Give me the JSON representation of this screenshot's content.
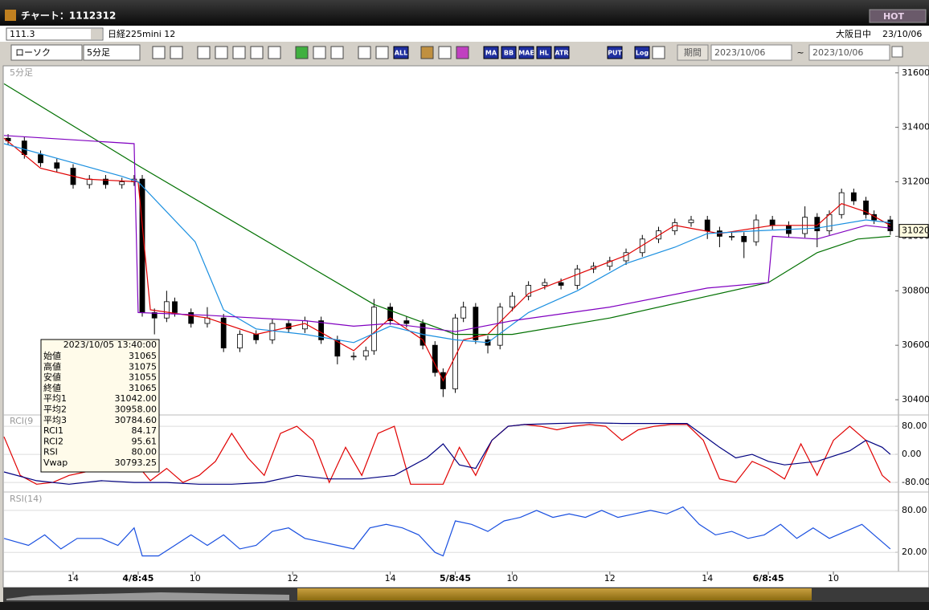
{
  "window": {
    "title": "チャート：1112312",
    "hot": "HOT"
  },
  "symbol_bar": {
    "code": "111.3",
    "name": "日経225mini 12",
    "session": "大阪日中",
    "date": "23/10/06"
  },
  "toolbar": {
    "chart_type": "ローソク",
    "interval": "5分足",
    "buttons": [
      "ALL",
      "MA",
      "BB",
      "MAE",
      "HL",
      "ATR",
      "PUT",
      "Log"
    ],
    "period": "期間",
    "from": "2023/10/06",
    "sep": "~",
    "to": "2023/10/06"
  },
  "info_panel": {
    "time": "2023/10/05 13:40:00",
    "rows": [
      {
        "label": "始値",
        "value": "31065",
        "color": "#000000"
      },
      {
        "label": "高値",
        "value": "31075",
        "color": "#000000"
      },
      {
        "label": "安値",
        "value": "31055",
        "color": "#000000"
      },
      {
        "label": "終値",
        "value": "31065",
        "color": "#000000"
      },
      {
        "label": "平均1",
        "value": "31042.00",
        "color": "#e00000"
      },
      {
        "label": "平均2",
        "value": "30958.00",
        "color": "#1a8fe0"
      },
      {
        "label": "平均3",
        "value": "30784.60",
        "color": "#007000"
      },
      {
        "label": "RCI1",
        "value": "84.17",
        "color": "#e00000"
      },
      {
        "label": "RCI2",
        "value": "95.61",
        "color": "#000080"
      },
      {
        "label": "RSI",
        "value": "80.00",
        "color": "#1a50e0"
      },
      {
        "label": "Vwap",
        "value": "30793.25",
        "color": "#8000c0"
      }
    ]
  },
  "chart_data": [
    {
      "type": "candlestick",
      "label": "5分足",
      "xlim": [
        0,
        220
      ],
      "xticks": [
        {
          "value": 17,
          "label": "14"
        },
        {
          "value": 33,
          "label": "4/8:45"
        },
        {
          "value": 47,
          "label": "10"
        },
        {
          "value": 71,
          "label": "12"
        },
        {
          "value": 95,
          "label": "14"
        },
        {
          "value": 111,
          "label": "5/8:45"
        },
        {
          "value": 125,
          "label": "10"
        },
        {
          "value": 149,
          "label": "12"
        },
        {
          "value": 173,
          "label": "14"
        },
        {
          "value": 188,
          "label": "6/8:45"
        },
        {
          "value": 204,
          "label": "10"
        }
      ],
      "ylim": [
        30350,
        31620
      ],
      "yticks": [
        30400,
        30600,
        30800,
        31000,
        31200,
        31400,
        31600
      ],
      "last_price": 31020,
      "x": [
        1,
        5,
        9,
        13,
        17,
        21,
        25,
        29,
        32,
        34,
        37,
        40,
        42,
        46,
        50,
        54,
        58,
        62,
        66,
        70,
        74,
        78,
        82,
        86,
        89,
        91,
        95,
        99,
        103,
        106,
        108,
        111,
        113,
        116,
        119,
        122,
        125,
        129,
        133,
        137,
        141,
        145,
        149,
        153,
        157,
        161,
        165,
        169,
        173,
        176,
        179,
        182,
        185,
        189,
        193,
        197,
        200,
        203,
        206,
        209,
        212,
        214,
        218
      ],
      "open": [
        31360,
        31350,
        31300,
        31270,
        31250,
        31190,
        31210,
        31190,
        31200,
        31210,
        30720,
        30700,
        30760,
        30720,
        30680,
        30700,
        30590,
        30640,
        30620,
        30680,
        30660,
        30690,
        30620,
        30560,
        30560,
        30580,
        30740,
        30690,
        30680,
        30600,
        30500,
        30440,
        30700,
        30740,
        30620,
        30600,
        30740,
        30780,
        30820,
        30830,
        30820,
        30880,
        30890,
        30910,
        30940,
        30990,
        31020,
        31050,
        31060,
        31020,
        31000,
        31000,
        30980,
        31060,
        31040,
        31010,
        31070,
        31020,
        31080,
        31160,
        31130,
        31080,
        31060
      ],
      "high": [
        31375,
        31365,
        31315,
        31285,
        31265,
        31225,
        31225,
        31215,
        31225,
        31225,
        30735,
        30800,
        30775,
        30735,
        30740,
        30715,
        30655,
        30655,
        30695,
        30695,
        30705,
        30705,
        30635,
        30575,
        30595,
        30770,
        30755,
        30705,
        30695,
        30615,
        30515,
        30715,
        30760,
        30755,
        30635,
        30755,
        30795,
        30835,
        30845,
        30845,
        30895,
        30905,
        30925,
        30955,
        31005,
        31035,
        31065,
        31075,
        31075,
        31035,
        31015,
        31015,
        31080,
        31075,
        31055,
        31110,
        31085,
        31095,
        31175,
        31175,
        31145,
        31095,
        31075
      ],
      "low": [
        31335,
        31285,
        31255,
        31235,
        31175,
        31175,
        31175,
        31175,
        31185,
        30705,
        30640,
        30685,
        30705,
        30665,
        30665,
        30575,
        30575,
        30605,
        30605,
        30645,
        30645,
        30605,
        30530,
        30545,
        30545,
        30565,
        30675,
        30665,
        30585,
        30485,
        30410,
        30425,
        30685,
        30605,
        30570,
        30585,
        30725,
        30765,
        30805,
        30805,
        30805,
        30865,
        30875,
        30895,
        30925,
        30975,
        31005,
        31035,
        30990,
        30960,
        30985,
        30920,
        30965,
        31025,
        30995,
        30995,
        30960,
        31005,
        31065,
        31115,
        31065,
        31045,
        31005
      ],
      "close": [
        31350,
        31300,
        31270,
        31250,
        31190,
        31210,
        31190,
        31200,
        31210,
        30720,
        30700,
        30760,
        30720,
        30680,
        30700,
        30590,
        30640,
        30620,
        30680,
        30660,
        30690,
        30620,
        30560,
        30560,
        30580,
        30740,
        30690,
        30680,
        30600,
        30500,
        30440,
        30700,
        30740,
        30620,
        30600,
        30740,
        30780,
        30820,
        30830,
        30820,
        30880,
        30890,
        30910,
        30940,
        30990,
        31020,
        31050,
        31060,
        31020,
        31000,
        31000,
        30980,
        31060,
        31040,
        31010,
        31070,
        31020,
        31080,
        31160,
        31130,
        31080,
        31060,
        31020
      ],
      "series": [
        {
          "color": "#e00000",
          "x": [
            0,
            9,
            20,
            33,
            36,
            50,
            62,
            74,
            86,
            95,
            103,
            108,
            113,
            119,
            129,
            141,
            153,
            165,
            176,
            189,
            200,
            206,
            212,
            218
          ],
          "values": [
            31360,
            31250,
            31210,
            31200,
            30730,
            30700,
            30640,
            30680,
            30580,
            30700,
            30620,
            30470,
            30620,
            30640,
            30790,
            30860,
            30930,
            31040,
            31010,
            31040,
            31040,
            31120,
            31090,
            31040
          ]
        },
        {
          "color": "#1a8fe0",
          "x": [
            0,
            17,
            29,
            33,
            47,
            54,
            62,
            74,
            86,
            95,
            103,
            111,
            119,
            129,
            141,
            153,
            165,
            173,
            185,
            200,
            212,
            218
          ],
          "values": [
            31340,
            31270,
            31220,
            31200,
            30980,
            30730,
            30660,
            30640,
            30610,
            30670,
            30640,
            30620,
            30610,
            30720,
            30800,
            30900,
            30960,
            31010,
            31020,
            31030,
            31060,
            31050
          ]
        },
        {
          "color": "#007000",
          "x": [
            0,
            33,
            91,
            111,
            125,
            149,
            173,
            188,
            200,
            210,
            218
          ],
          "values": [
            31560,
            31260,
            30750,
            30640,
            30640,
            30700,
            30780,
            30830,
            30940,
            30990,
            31000
          ]
        },
        {
          "color": "#8000c0",
          "x": [
            0,
            32,
            33,
            50,
            74,
            86,
            95,
            111,
            125,
            149,
            173,
            188,
            189,
            200,
            212,
            218
          ],
          "values": [
            31370,
            31340,
            30720,
            30710,
            30690,
            30670,
            30680,
            30650,
            30690,
            30740,
            30810,
            30830,
            31000,
            30990,
            31040,
            31030
          ]
        }
      ]
    },
    {
      "type": "line",
      "label": "RCI(9",
      "ylim": [
        -105,
        110
      ],
      "yticks": [
        {
          "value": -80,
          "label": "-80.00"
        },
        {
          "value": 0,
          "label": "0.00"
        },
        {
          "value": 80,
          "label": "80.00"
        }
      ],
      "series": [
        {
          "color": "#e00000",
          "x": [
            0,
            4,
            8,
            12,
            16,
            20,
            24,
            28,
            32,
            36,
            40,
            44,
            48,
            52,
            56,
            60,
            64,
            68,
            72,
            76,
            80,
            84,
            88,
            92,
            96,
            100,
            104,
            108,
            112,
            116,
            120,
            124,
            128,
            132,
            136,
            140,
            144,
            148,
            152,
            156,
            160,
            164,
            168,
            172,
            176,
            180,
            184,
            188,
            192,
            196,
            200,
            204,
            208,
            212,
            216,
            218
          ],
          "values": [
            50,
            -60,
            -85,
            -80,
            -60,
            -50,
            -30,
            40,
            -20,
            -75,
            -40,
            -80,
            -60,
            -20,
            60,
            -10,
            -60,
            60,
            80,
            40,
            -80,
            20,
            -60,
            60,
            80,
            -85,
            -85,
            -85,
            20,
            -60,
            40,
            80,
            85,
            80,
            70,
            80,
            85,
            80,
            40,
            70,
            80,
            85,
            85,
            40,
            -70,
            -80,
            -20,
            -40,
            -70,
            30,
            -60,
            40,
            80,
            40,
            -60,
            -80
          ]
        },
        {
          "color": "#000080",
          "x": [
            0,
            8,
            16,
            24,
            32,
            40,
            48,
            56,
            64,
            72,
            80,
            88,
            96,
            104,
            108,
            112,
            116,
            120,
            124,
            128,
            136,
            144,
            152,
            160,
            168,
            176,
            180,
            184,
            188,
            192,
            200,
            208,
            212,
            216,
            218
          ],
          "values": [
            -50,
            -75,
            -85,
            -75,
            -80,
            -80,
            -85,
            -85,
            -80,
            -60,
            -70,
            -70,
            -60,
            -10,
            30,
            -30,
            -40,
            40,
            80,
            85,
            88,
            90,
            88,
            88,
            88,
            20,
            -10,
            0,
            -20,
            -30,
            -20,
            10,
            40,
            20,
            0
          ]
        }
      ]
    },
    {
      "type": "line",
      "label": "RSI(14)",
      "ylim": [
        -5,
        104
      ],
      "yticks": [
        {
          "value": 20,
          "label": "20.00"
        },
        {
          "value": 80,
          "label": "80.00"
        }
      ],
      "series": [
        {
          "color": "#1a50e0",
          "x": [
            0,
            6,
            10,
            14,
            18,
            24,
            28,
            32,
            34,
            38,
            42,
            46,
            50,
            54,
            58,
            62,
            66,
            70,
            74,
            78,
            82,
            86,
            90,
            94,
            98,
            102,
            106,
            108,
            111,
            115,
            119,
            123,
            127,
            131,
            135,
            139,
            143,
            147,
            151,
            155,
            159,
            163,
            167,
            171,
            175,
            179,
            183,
            187,
            191,
            195,
            199,
            203,
            207,
            211,
            214,
            218
          ],
          "values": [
            40,
            30,
            45,
            25,
            40,
            40,
            30,
            55,
            15,
            15,
            30,
            45,
            30,
            45,
            25,
            30,
            50,
            55,
            40,
            35,
            30,
            25,
            55,
            60,
            55,
            45,
            20,
            15,
            65,
            60,
            50,
            65,
            70,
            80,
            70,
            75,
            70,
            80,
            70,
            75,
            80,
            75,
            85,
            60,
            45,
            50,
            40,
            45,
            60,
            40,
            55,
            40,
            50,
            60,
            45,
            25
          ]
        }
      ]
    }
  ]
}
